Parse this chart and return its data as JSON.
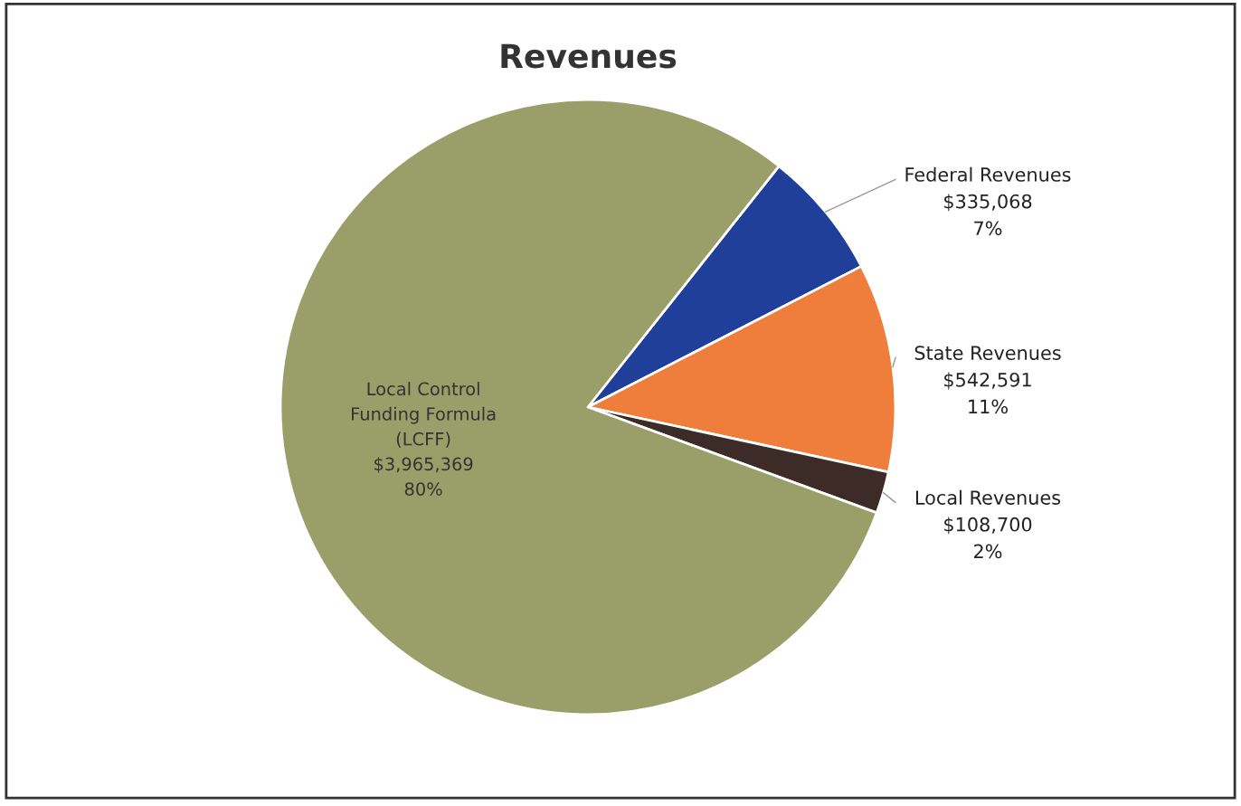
{
  "chart_data": {
    "type": "pie",
    "title": "Revenues",
    "categories": [
      "Federal Revenues",
      "State Revenues",
      "Local Revenues",
      "Local Control\nFunding Formula\n(LCFF)"
    ],
    "values": [
      335068,
      542591,
      108700,
      3965369
    ],
    "colors": [
      "#1f3f9a",
      "#ef7d3c",
      "#3d2b28",
      "#9a9f6a"
    ],
    "value_labels": [
      "$335,068\n7%",
      "$542,591\n11%",
      "$108,700\n2%",
      "$3,965,369\n80%"
    ],
    "legend": false
  }
}
